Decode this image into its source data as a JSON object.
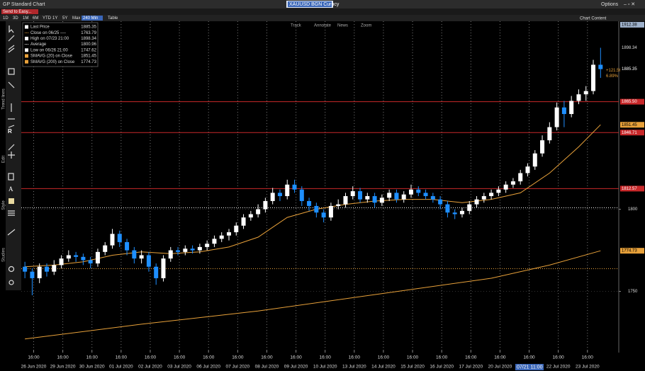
{
  "window": {
    "title": "GP Standard Chart",
    "ticker": "XAUUSD BGN Curncy",
    "options": "Options",
    "send_button": "Send to Easy...",
    "periods": [
      "1D",
      "3D",
      "1M",
      "6M",
      "YTD",
      "1Y",
      "5Y",
      "Max"
    ],
    "interval": "240 Min",
    "table": "Table",
    "tools": [
      "Track",
      "Annotate",
      "News",
      "Zoom"
    ],
    "chart_content": "Chart Content",
    "side_labels": [
      "Trend lines",
      "Edit",
      "Style",
      "Studies"
    ],
    "cursor_label": "07/21 11:00"
  },
  "chart_data": {
    "type": "candlestick",
    "up_color": "#ffffff",
    "down_color": "#1e8fff",
    "ylim": [
      1714,
      1914.5
    ],
    "yticks": [
      1750,
      1800
    ],
    "scale_high": 1912.38,
    "xlim": [
      -0.5,
      81.5
    ],
    "xticks": [
      {
        "value": 1.2,
        "label": "16:00"
      },
      {
        "value": 5.2,
        "label": "16:00"
      },
      {
        "value": 9.2,
        "label": "16:00"
      },
      {
        "value": 13.2,
        "label": "16:00"
      },
      {
        "value": 17.2,
        "label": "16:00"
      },
      {
        "value": 21.2,
        "label": "16:00"
      },
      {
        "value": 25.2,
        "label": "16:00"
      },
      {
        "value": 29.2,
        "label": "16:00"
      },
      {
        "value": 33.2,
        "label": "16:00"
      },
      {
        "value": 37.2,
        "label": "16:00"
      },
      {
        "value": 41.2,
        "label": "16:00"
      },
      {
        "value": 45.2,
        "label": "16:00"
      },
      {
        "value": 49.2,
        "label": "16:00"
      },
      {
        "value": 53.2,
        "label": "16:00"
      },
      {
        "value": 57.2,
        "label": "16:00"
      },
      {
        "value": 61.2,
        "label": "16:00"
      },
      {
        "value": 65.2,
        "label": "16:00"
      },
      {
        "value": 69.2,
        "label": "16:00"
      },
      {
        "value": 73.2,
        "label": "16:00"
      },
      {
        "value": 77.2,
        "label": "16:00"
      }
    ],
    "xdates": [
      "26 Jun 2020",
      "29 Jun 2020",
      "30 Jun 2020",
      "01 Jul 2020",
      "02 Jul 2020",
      "03 Jul 2020",
      "06 Jul 2020",
      "07 Jul 2020",
      "08 Jul 2020",
      "09 Jul 2020",
      "10 Jul 2020",
      "13 Jul 2020",
      "14 Jul 2020",
      "15 Jul 2020",
      "16 Jul 2020",
      "17 Jul 2020",
      "20 Jul 2020",
      "21 Jul 2020",
      "22 Jul 2020",
      "23 Jul 2020"
    ],
    "grid": true,
    "ohlc": [
      [
        1765,
        1768,
        1758,
        1762
      ],
      [
        1762,
        1764,
        1747.62,
        1758
      ],
      [
        1758,
        1767,
        1755,
        1765
      ],
      [
        1765,
        1767,
        1759,
        1762
      ],
      [
        1762,
        1769,
        1760,
        1766
      ],
      [
        1766,
        1772,
        1764,
        1770
      ],
      [
        1770,
        1775,
        1768,
        1772
      ],
      [
        1772,
        1774,
        1768,
        1771
      ],
      [
        1771,
        1773,
        1766,
        1769
      ],
      [
        1769,
        1771,
        1764,
        1767
      ],
      [
        1767,
        1776,
        1765,
        1774
      ],
      [
        1774,
        1780,
        1772,
        1778
      ],
      [
        1778,
        1788,
        1776,
        1785
      ],
      [
        1785,
        1787,
        1777,
        1780
      ],
      [
        1780,
        1782,
        1772,
        1775
      ],
      [
        1775,
        1777,
        1767,
        1770
      ],
      [
        1770,
        1775,
        1767,
        1772
      ],
      [
        1772,
        1774,
        1762,
        1765
      ],
      [
        1765,
        1767,
        1754,
        1758
      ],
      [
        1758,
        1772,
        1756,
        1770
      ],
      [
        1770,
        1777,
        1768,
        1775
      ],
      [
        1775,
        1777,
        1772,
        1774
      ],
      [
        1774,
        1778,
        1772,
        1776
      ],
      [
        1776,
        1778,
        1773,
        1775
      ],
      [
        1775,
        1779,
        1773,
        1777
      ],
      [
        1777,
        1781,
        1775,
        1779
      ],
      [
        1779,
        1784,
        1777,
        1782
      ],
      [
        1782,
        1786,
        1780,
        1784
      ],
      [
        1784,
        1788,
        1781,
        1786
      ],
      [
        1786,
        1792,
        1784,
        1790
      ],
      [
        1790,
        1797,
        1788,
        1795
      ],
      [
        1795,
        1799,
        1793,
        1797
      ],
      [
        1797,
        1803,
        1795,
        1800
      ],
      [
        1800,
        1807,
        1798,
        1805
      ],
      [
        1805,
        1813,
        1803,
        1810
      ],
      [
        1810,
        1812,
        1805,
        1808
      ],
      [
        1808,
        1818,
        1806,
        1815
      ],
      [
        1815,
        1818,
        1810,
        1812
      ],
      [
        1812,
        1814,
        1802,
        1805
      ],
      [
        1805,
        1807,
        1799,
        1802
      ],
      [
        1802,
        1804,
        1795,
        1798
      ],
      [
        1798,
        1800,
        1792,
        1795
      ],
      [
        1795,
        1804,
        1793,
        1802
      ],
      [
        1802,
        1806,
        1800,
        1803
      ],
      [
        1803,
        1810,
        1801,
        1808
      ],
      [
        1808,
        1814,
        1806,
        1811
      ],
      [
        1811,
        1813,
        1804,
        1806
      ],
      [
        1806,
        1810,
        1804,
        1808
      ],
      [
        1808,
        1810,
        1801,
        1804
      ],
      [
        1804,
        1809,
        1802,
        1807
      ],
      [
        1807,
        1812,
        1805,
        1810
      ],
      [
        1810,
        1812,
        1804,
        1806
      ],
      [
        1806,
        1811,
        1804,
        1809
      ],
      [
        1809,
        1815,
        1807,
        1812
      ],
      [
        1812,
        1814,
        1808,
        1810
      ],
      [
        1810,
        1812,
        1806,
        1808
      ],
      [
        1808,
        1810,
        1804,
        1806
      ],
      [
        1806,
        1808,
        1800,
        1803
      ],
      [
        1803,
        1805,
        1795,
        1798
      ],
      [
        1798,
        1800,
        1794,
        1797
      ],
      [
        1797,
        1801,
        1795,
        1799
      ],
      [
        1799,
        1805,
        1797,
        1803
      ],
      [
        1803,
        1808,
        1801,
        1806
      ],
      [
        1806,
        1810,
        1804,
        1808
      ],
      [
        1808,
        1812,
        1806,
        1810
      ],
      [
        1810,
        1814,
        1808,
        1812
      ],
      [
        1812,
        1817,
        1810,
        1815
      ],
      [
        1815,
        1819,
        1813,
        1817
      ],
      [
        1817,
        1824,
        1815,
        1822
      ],
      [
        1822,
        1828,
        1820,
        1826
      ],
      [
        1826,
        1836,
        1824,
        1834
      ],
      [
        1834,
        1845,
        1832,
        1842
      ],
      [
        1842,
        1853,
        1840,
        1850
      ],
      [
        1850,
        1865,
        1848,
        1862
      ],
      [
        1862,
        1866,
        1850,
        1858
      ],
      [
        1858,
        1869,
        1856,
        1866
      ],
      [
        1866,
        1873,
        1864,
        1870
      ],
      [
        1870,
        1875,
        1866,
        1872
      ],
      [
        1872,
        1891,
        1870,
        1888
      ],
      [
        1888,
        1898.34,
        1880,
        1885.35
      ]
    ],
    "series": [
      {
        "color": "#e8a13a",
        "x": [
          0,
          4,
          8,
          12,
          16,
          20,
          24,
          28,
          32,
          36,
          40,
          44,
          48,
          52,
          56,
          60,
          64,
          68,
          72,
          76,
          79
        ],
        "values": [
          1765,
          1766,
          1768,
          1772,
          1774,
          1773,
          1774,
          1777,
          1783,
          1795,
          1800,
          1803,
          1805,
          1806,
          1806,
          1804,
          1806,
          1810,
          1822,
          1838,
          1851.45
        ]
      },
      {
        "color": "#e8a13a",
        "x": [
          0,
          16,
          32,
          48,
          64,
          72,
          79
        ],
        "values": [
          1721,
          1730,
          1738,
          1748,
          1758,
          1766,
          1774.73
        ]
      }
    ],
    "legend": [
      {
        "name": "Last Price",
        "value": 1885.35,
        "color": "#ffffff"
      },
      {
        "name": "Close on 06/25 ----",
        "value": 1763.79,
        "color": "#e8a13a",
        "line": "dotted"
      },
      {
        "name": "High on 07/23 21:00",
        "value": 1898.34,
        "color": "#ffffff"
      },
      {
        "name": "Average",
        "value": 1800.96,
        "color": "#ffffff",
        "line": "dotted"
      },
      {
        "name": "Low on 06/26 21:00",
        "value": 1747.62,
        "color": "#ffffff"
      },
      {
        "name": "SMAVG (20)  on Close",
        "value": 1851.45,
        "color": "#e8a13a"
      },
      {
        "name": "SMAVG (200)  on Close",
        "value": 1774.73,
        "color": "#e8a13a"
      }
    ],
    "levels": [
      {
        "value": 1865.5,
        "label": "1865.50",
        "color": "#c8282a"
      },
      {
        "value": 1846.71,
        "color": "#c8282a"
      },
      {
        "value": 1812.57,
        "color": "#c8282a"
      }
    ],
    "change": "+121.56",
    "change_pct": "6.89%"
  }
}
